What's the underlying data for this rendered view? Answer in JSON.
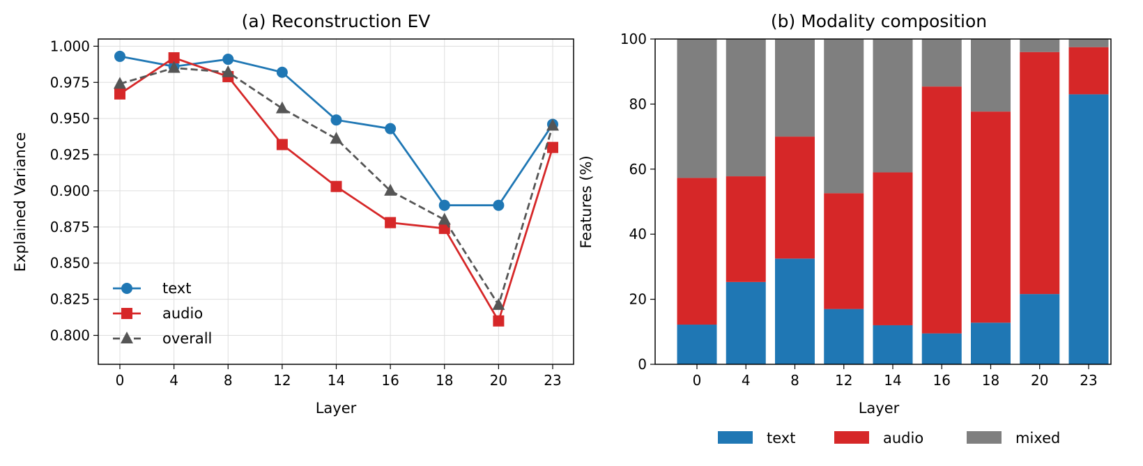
{
  "chart_data": [
    {
      "type": "line",
      "title": "(a) Reconstruction EV",
      "xlabel": "Layer",
      "ylabel": "Explained Variance",
      "categories": [
        "0",
        "4",
        "8",
        "12",
        "14",
        "16",
        "18",
        "20",
        "23"
      ],
      "ylim": [
        0.78,
        1.005
      ],
      "yticks": [
        "0.800",
        "0.825",
        "0.850",
        "0.875",
        "0.900",
        "0.925",
        "0.950",
        "0.975",
        "1.000"
      ],
      "grid": true,
      "legend_position": "lower-left",
      "series": [
        {
          "name": "text",
          "color": "#1f77b4",
          "marker": "circle",
          "dash": false,
          "values": [
            0.993,
            0.986,
            0.991,
            0.982,
            0.949,
            0.943,
            0.89,
            0.89,
            0.946
          ]
        },
        {
          "name": "audio",
          "color": "#d62728",
          "marker": "square",
          "dash": false,
          "values": [
            0.967,
            0.992,
            0.979,
            0.932,
            0.903,
            0.878,
            0.874,
            0.81,
            0.93
          ]
        },
        {
          "name": "overall",
          "color": "#555555",
          "marker": "triangle",
          "dash": true,
          "values": [
            0.974,
            0.985,
            0.982,
            0.957,
            0.936,
            0.9,
            0.88,
            0.821,
            0.945
          ]
        }
      ]
    },
    {
      "type": "bar",
      "stacked": true,
      "title": "(b) Modality composition",
      "xlabel": "Layer",
      "ylabel": "Features (%)",
      "categories": [
        "0",
        "4",
        "8",
        "12",
        "14",
        "16",
        "18",
        "20",
        "23"
      ],
      "ylim": [
        0,
        100
      ],
      "yticks": [
        "0",
        "20",
        "40",
        "60",
        "80",
        "100"
      ],
      "grid": false,
      "legend_position": "bottom-center",
      "series": [
        {
          "name": "text",
          "color": "#1f77b4",
          "values": [
            12.2,
            25.3,
            32.5,
            17.0,
            12.0,
            9.5,
            12.8,
            21.6,
            83.0
          ]
        },
        {
          "name": "audio",
          "color": "#d62728",
          "values": [
            45.1,
            32.5,
            37.5,
            35.6,
            47.0,
            75.9,
            64.9,
            74.4,
            14.5
          ]
        },
        {
          "name": "mixed",
          "color": "#7f7f7f",
          "values": [
            42.7,
            42.2,
            30.0,
            47.4,
            41.0,
            14.6,
            22.3,
            4.0,
            2.5
          ]
        }
      ]
    }
  ]
}
